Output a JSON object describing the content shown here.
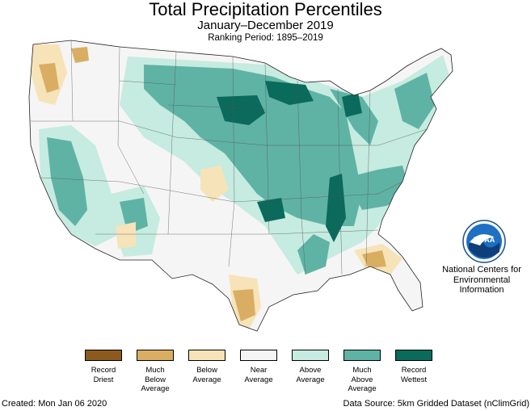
{
  "title": "Total Precipitation Percentiles",
  "subtitle": "January–December 2019",
  "ranking_period": "Ranking Period: 1895–2019",
  "agency": {
    "line1": "National Centers for",
    "line2": "Environmental",
    "line3": "Information",
    "logo_text": "NOAA"
  },
  "legend": [
    {
      "lines": [
        "Record",
        "Driest"
      ],
      "color": "#8c5a1e"
    },
    {
      "lines": [
        "Much",
        "Below",
        "Average"
      ],
      "color": "#d9ae62"
    },
    {
      "lines": [
        "Below",
        "Average"
      ],
      "color": "#f6e3b7"
    },
    {
      "lines": [
        "Near",
        "Average"
      ],
      "color": "#f5f5f5"
    },
    {
      "lines": [
        "Above",
        "Average"
      ],
      "color": "#c6ebe0"
    },
    {
      "lines": [
        "Much",
        "Above",
        "Average"
      ],
      "color": "#5fb3a4"
    },
    {
      "lines": [
        "Record",
        "Wettest"
      ],
      "color": "#0a6a5b"
    }
  ],
  "footer": {
    "created": "Created: Mon Jan 06 2020",
    "source": "Data Source: 5km Gridded Dataset (nClimGrid)"
  }
}
